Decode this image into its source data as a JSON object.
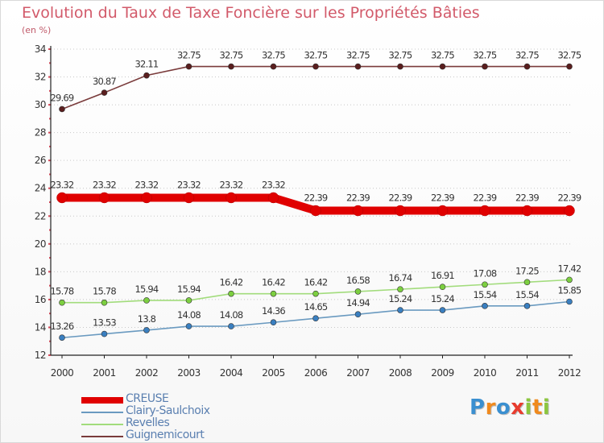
{
  "chart_data": {
    "type": "line",
    "title": "Evolution du Taux de Taxe Foncière sur les Propriétés Bâties",
    "subtitle": "(en %)",
    "x": [
      "2000",
      "2001",
      "2002",
      "2003",
      "2004",
      "2005",
      "2006",
      "2007",
      "2008",
      "2009",
      "2010",
      "2011",
      "2012"
    ],
    "ylim": [
      12,
      34
    ],
    "yticks": [
      12,
      14,
      16,
      18,
      20,
      22,
      24,
      26,
      28,
      30,
      32,
      34
    ],
    "grid": "horizontal dotted",
    "legend_position": "bottom-left",
    "series": [
      {
        "name": "CREUSE",
        "color": "#e00000",
        "marker": "#e00000",
        "values": [
          23.32,
          23.32,
          23.32,
          23.32,
          23.32,
          23.32,
          22.39,
          22.39,
          22.39,
          22.39,
          22.39,
          22.39,
          22.39
        ],
        "labels": [
          "23.32",
          "23.32",
          "23.32",
          "23.32",
          "23.32",
          "23.32",
          "22.39",
          "22.39",
          "22.39",
          "22.39",
          "22.39",
          "22.39",
          "22.39"
        ]
      },
      {
        "name": "Clairy-Saulchoix",
        "color": "#6a9ac0",
        "marker": "#3a7fc0",
        "values": [
          13.26,
          13.53,
          13.8,
          14.08,
          14.08,
          14.36,
          14.65,
          14.94,
          15.24,
          15.24,
          15.54,
          15.54,
          15.85
        ],
        "labels": [
          "13.26",
          "13.53",
          "13.8",
          "14.08",
          "14.08",
          "14.36",
          "14.65",
          "14.94",
          "15.24",
          "15.24",
          "15.54",
          "15.54",
          "15.85"
        ]
      },
      {
        "name": "Revelles",
        "color": "#a2dc7c",
        "marker": "#7ccf40",
        "values": [
          15.78,
          15.78,
          15.94,
          15.94,
          16.42,
          16.42,
          16.42,
          16.58,
          16.74,
          16.91,
          17.08,
          17.25,
          17.42
        ],
        "labels": [
          "15.78",
          "15.78",
          "15.94",
          "15.94",
          "16.42",
          "16.42",
          "16.42",
          "16.58",
          "16.74",
          "16.91",
          "17.08",
          "17.25",
          "17.42"
        ]
      },
      {
        "name": "Guignemicourt",
        "color": "#7a3b3b",
        "marker": "#5a1e1e",
        "values": [
          29.69,
          30.87,
          32.11,
          32.75,
          32.75,
          32.75,
          32.75,
          32.75,
          32.75,
          32.75,
          32.75,
          32.75,
          32.75
        ],
        "labels": [
          "29.69",
          "30.87",
          "32.11",
          "32.75",
          "32.75",
          "32.75",
          "32.75",
          "32.75",
          "32.75",
          "32.75",
          "32.75",
          "32.75",
          "32.75"
        ]
      }
    ]
  },
  "logo": {
    "letters": [
      "P",
      "r",
      "o",
      "x",
      "i",
      "t",
      "i"
    ],
    "colors": [
      "#3a8fd0",
      "#f08a1e",
      "#3a8fd0",
      "#e83c2e",
      "#8cc63f",
      "#f08a1e",
      "#8cc63f"
    ]
  }
}
